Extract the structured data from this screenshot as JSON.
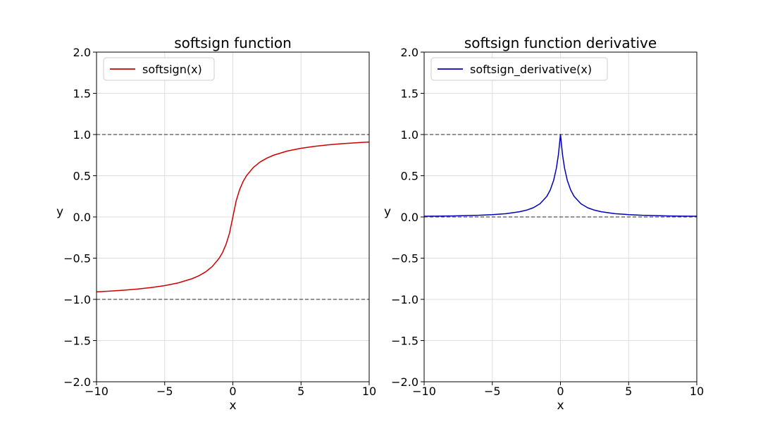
{
  "chart_data": [
    {
      "type": "line",
      "title": "softsign function",
      "xlabel": "x",
      "ylabel": "y",
      "xlim": [
        -10,
        10
      ],
      "ylim": [
        -2.0,
        2.0
      ],
      "xticks": [
        -10,
        -5,
        0,
        5,
        10
      ],
      "xtick_labels": [
        "−10",
        "−5",
        "0",
        "5",
        "10"
      ],
      "yticks": [
        -2.0,
        -1.5,
        -1.0,
        -0.5,
        0.0,
        0.5,
        1.0,
        1.5,
        2.0
      ],
      "ytick_labels": [
        "−2.0",
        "−1.5",
        "−1.0",
        "−0.5",
        "0.0",
        "0.5",
        "1.0",
        "1.5",
        "2.0"
      ],
      "grid": true,
      "legend_position": "upper-left",
      "hlines": [
        {
          "y": 1.0,
          "style": "dashed",
          "color": "#555555"
        },
        {
          "y": -1.0,
          "style": "dashed",
          "color": "#555555"
        }
      ],
      "series": [
        {
          "name": "softsign(x)",
          "color": "#cc0000",
          "x": [
            -10,
            -9,
            -8,
            -7,
            -6,
            -5,
            -4,
            -3,
            -2.5,
            -2,
            -1.5,
            -1,
            -0.75,
            -0.5,
            -0.25,
            0,
            0.25,
            0.5,
            0.75,
            1,
            1.5,
            2,
            2.5,
            3,
            4,
            5,
            6,
            7,
            8,
            9,
            10
          ],
          "y": [
            -0.909,
            -0.9,
            -0.889,
            -0.875,
            -0.857,
            -0.833,
            -0.8,
            -0.75,
            -0.714,
            -0.667,
            -0.6,
            -0.5,
            -0.429,
            -0.333,
            -0.2,
            0.0,
            0.2,
            0.333,
            0.429,
            0.5,
            0.6,
            0.667,
            0.714,
            0.75,
            0.8,
            0.833,
            0.857,
            0.875,
            0.889,
            0.9,
            0.909
          ]
        }
      ]
    },
    {
      "type": "line",
      "title": "softsign function derivative",
      "xlabel": "x",
      "ylabel": "y",
      "xlim": [
        -10,
        10
      ],
      "ylim": [
        -2.0,
        2.0
      ],
      "xticks": [
        -10,
        -5,
        0,
        5,
        10
      ],
      "xtick_labels": [
        "−10",
        "−5",
        "0",
        "5",
        "10"
      ],
      "yticks": [
        -2.0,
        -1.5,
        -1.0,
        -0.5,
        0.0,
        0.5,
        1.0,
        1.5,
        2.0
      ],
      "ytick_labels": [
        "−2.0",
        "−1.5",
        "−1.0",
        "−0.5",
        "0.0",
        "0.5",
        "1.0",
        "1.5",
        "2.0"
      ],
      "grid": true,
      "legend_position": "upper-left",
      "hlines": [
        {
          "y": 1.0,
          "style": "dashed",
          "color": "#555555"
        },
        {
          "y": 0.0,
          "style": "dashed",
          "color": "#555555"
        }
      ],
      "series": [
        {
          "name": "softsign_derivative(x)",
          "color": "#0000bb",
          "x": [
            -10,
            -9,
            -8,
            -7,
            -6,
            -5,
            -4,
            -3,
            -2.5,
            -2,
            -1.5,
            -1,
            -0.75,
            -0.5,
            -0.3,
            -0.15,
            0,
            0.15,
            0.3,
            0.5,
            0.75,
            1,
            1.5,
            2,
            2.5,
            3,
            4,
            5,
            6,
            7,
            8,
            9,
            10
          ],
          "y": [
            0.008,
            0.01,
            0.012,
            0.016,
            0.02,
            0.028,
            0.04,
            0.063,
            0.082,
            0.111,
            0.16,
            0.25,
            0.327,
            0.444,
            0.592,
            0.756,
            1.0,
            0.756,
            0.592,
            0.444,
            0.327,
            0.25,
            0.16,
            0.111,
            0.082,
            0.063,
            0.04,
            0.028,
            0.02,
            0.016,
            0.012,
            0.01,
            0.008
          ]
        }
      ]
    }
  ]
}
